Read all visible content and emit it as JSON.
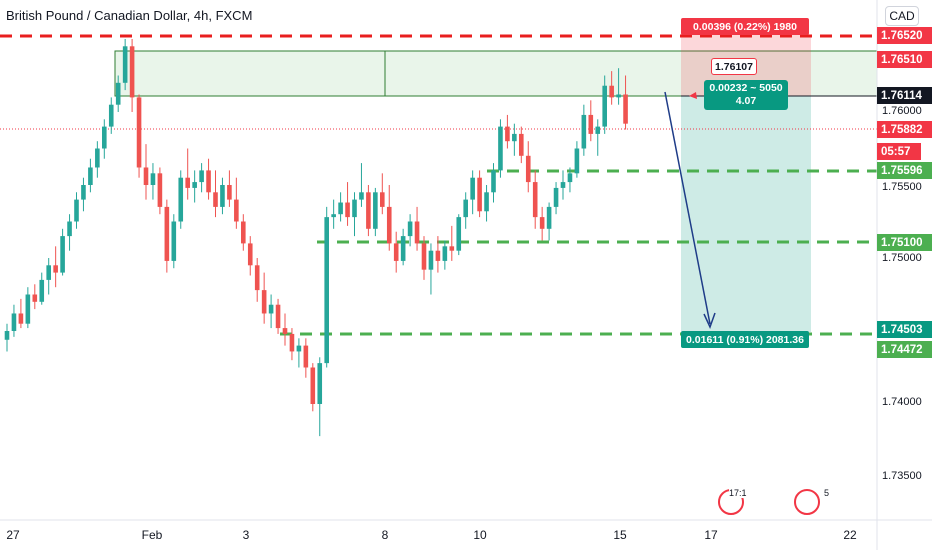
{
  "header": {
    "title": "British Pound / Canadian Dollar, 4h, FXCM",
    "currency_button": "CAD"
  },
  "price_tags": [
    {
      "label": "1.76520",
      "color": "#f23645"
    },
    {
      "label": "1.76510",
      "color": "#f23645"
    },
    {
      "label": "1.76114",
      "color": "#131722"
    },
    {
      "label": "1.75882",
      "color": "#f23645"
    },
    {
      "label": "05:57",
      "color": "#f23645"
    },
    {
      "label": "1.75596",
      "color": "#4caf50"
    },
    {
      "label": "1.75100",
      "color": "#4caf50"
    },
    {
      "label": "1.74503",
      "color": "#089981"
    },
    {
      "label": "1.74472",
      "color": "#4caf50"
    }
  ],
  "y_axis_ticks": [
    "1.76000",
    "1.75500",
    "1.75000",
    "1.74000",
    "1.73500"
  ],
  "x_axis_ticks": [
    "27",
    "Feb",
    "3",
    "8",
    "10",
    "15",
    "17",
    "22"
  ],
  "position_tool": {
    "stop_text": "0.00396 (0.22%) 1980",
    "entry_price_label": "1.76107",
    "info_line1": "0.00232 ~ 5050",
    "info_line2": "4.07",
    "target_text": "0.01611 (0.91%) 2081.36"
  },
  "event_badges": [
    {
      "label": "17:1"
    },
    {
      "label": "5"
    }
  ],
  "colors": {
    "bull": "#26a69a",
    "bear": "#ef5350",
    "level_red": "#e81e1e",
    "level_green": "#4caf50"
  },
  "chart_data": {
    "type": "candlestick",
    "title": "British Pound / Canadian Dollar, 4h, FXCM",
    "ylim": [
      1.7325,
      1.767
    ],
    "y_ticks": [
      1.76,
      1.755,
      1.75,
      1.74,
      1.735
    ],
    "x_tick_labels": [
      "27",
      "Feb",
      "3",
      "8",
      "10",
      "15",
      "17",
      "22"
    ],
    "horizontal_levels": [
      1.7652,
      1.7651,
      1.76114,
      1.75882,
      1.75596,
      1.751,
      1.74503,
      1.74472
    ],
    "candles": [
      [
        1.7444,
        1.7455,
        1.7436,
        1.745
      ],
      [
        1.745,
        1.7468,
        1.7446,
        1.7462
      ],
      [
        1.7462,
        1.7472,
        1.7452,
        1.7455
      ],
      [
        1.7455,
        1.748,
        1.7452,
        1.7475
      ],
      [
        1.7475,
        1.7482,
        1.7465,
        1.747
      ],
      [
        1.747,
        1.749,
        1.7468,
        1.7485
      ],
      [
        1.7485,
        1.75,
        1.7475,
        1.7495
      ],
      [
        1.7495,
        1.7508,
        1.748,
        1.749
      ],
      [
        1.749,
        1.752,
        1.7488,
        1.7515
      ],
      [
        1.7515,
        1.753,
        1.7505,
        1.7525
      ],
      [
        1.7525,
        1.7545,
        1.752,
        1.754
      ],
      [
        1.754,
        1.7555,
        1.7532,
        1.755
      ],
      [
        1.755,
        1.7568,
        1.7545,
        1.7562
      ],
      [
        1.7562,
        1.758,
        1.7555,
        1.7575
      ],
      [
        1.7575,
        1.7595,
        1.7568,
        1.759
      ],
      [
        1.759,
        1.761,
        1.7585,
        1.7605
      ],
      [
        1.7605,
        1.7625,
        1.76,
        1.762
      ],
      [
        1.762,
        1.765,
        1.7615,
        1.7645
      ],
      [
        1.7645,
        1.765,
        1.76,
        1.761
      ],
      [
        1.761,
        1.7612,
        1.7555,
        1.7562
      ],
      [
        1.7562,
        1.7578,
        1.754,
        1.755
      ],
      [
        1.755,
        1.7565,
        1.754,
        1.7558
      ],
      [
        1.7558,
        1.7562,
        1.753,
        1.7535
      ],
      [
        1.7535,
        1.754,
        1.749,
        1.7498
      ],
      [
        1.7498,
        1.753,
        1.7493,
        1.7525
      ],
      [
        1.7525,
        1.756,
        1.752,
        1.7555
      ],
      [
        1.7555,
        1.7575,
        1.754,
        1.7548
      ],
      [
        1.7548,
        1.756,
        1.7538,
        1.7552
      ],
      [
        1.7552,
        1.7565,
        1.7545,
        1.756
      ],
      [
        1.756,
        1.7568,
        1.754,
        1.7545
      ],
      [
        1.7545,
        1.756,
        1.7528,
        1.7535
      ],
      [
        1.7535,
        1.7555,
        1.753,
        1.755
      ],
      [
        1.755,
        1.756,
        1.7535,
        1.754
      ],
      [
        1.754,
        1.7555,
        1.752,
        1.7525
      ],
      [
        1.7525,
        1.753,
        1.7505,
        1.751
      ],
      [
        1.751,
        1.7515,
        1.7488,
        1.7495
      ],
      [
        1.7495,
        1.75,
        1.747,
        1.7478
      ],
      [
        1.7478,
        1.749,
        1.7455,
        1.7462
      ],
      [
        1.7462,
        1.7475,
        1.7452,
        1.7468
      ],
      [
        1.7468,
        1.7472,
        1.7448,
        1.7452
      ],
      [
        1.7452,
        1.7462,
        1.744,
        1.7448
      ],
      [
        1.7448,
        1.7452,
        1.743,
        1.7436
      ],
      [
        1.7436,
        1.7445,
        1.7425,
        1.744
      ],
      [
        1.744,
        1.7445,
        1.7418,
        1.7425
      ],
      [
        1.7425,
        1.7428,
        1.7395,
        1.74
      ],
      [
        1.74,
        1.7432,
        1.7378,
        1.7428
      ],
      [
        1.7428,
        1.7535,
        1.7425,
        1.7528
      ],
      [
        1.7528,
        1.754,
        1.752,
        1.753
      ],
      [
        1.753,
        1.7545,
        1.7525,
        1.7538
      ],
      [
        1.7538,
        1.7552,
        1.7522,
        1.7528
      ],
      [
        1.7528,
        1.7545,
        1.7515,
        1.754
      ],
      [
        1.754,
        1.7565,
        1.7535,
        1.7545
      ],
      [
        1.7545,
        1.755,
        1.7515,
        1.752
      ],
      [
        1.752,
        1.7548,
        1.7515,
        1.7545
      ],
      [
        1.7545,
        1.7558,
        1.753,
        1.7535
      ],
      [
        1.7535,
        1.755,
        1.7505,
        1.751
      ],
      [
        1.751,
        1.7518,
        1.749,
        1.7498
      ],
      [
        1.7498,
        1.752,
        1.7495,
        1.7515
      ],
      [
        1.7515,
        1.753,
        1.7508,
        1.7525
      ],
      [
        1.7525,
        1.7535,
        1.7505,
        1.751
      ],
      [
        1.751,
        1.7515,
        1.7485,
        1.7492
      ],
      [
        1.7492,
        1.751,
        1.7475,
        1.7505
      ],
      [
        1.7505,
        1.7515,
        1.749,
        1.7498
      ],
      [
        1.7498,
        1.7512,
        1.7492,
        1.7508
      ],
      [
        1.7508,
        1.7522,
        1.7498,
        1.7505
      ],
      [
        1.7505,
        1.753,
        1.7502,
        1.7528
      ],
      [
        1.7528,
        1.7545,
        1.752,
        1.754
      ],
      [
        1.754,
        1.756,
        1.753,
        1.7555
      ],
      [
        1.7555,
        1.756,
        1.7528,
        1.7532
      ],
      [
        1.7532,
        1.755,
        1.7525,
        1.7545
      ],
      [
        1.7545,
        1.7565,
        1.7538,
        1.756
      ],
      [
        1.756,
        1.7595,
        1.7555,
        1.759
      ],
      [
        1.759,
        1.7598,
        1.7575,
        1.758
      ],
      [
        1.758,
        1.7592,
        1.757,
        1.7585
      ],
      [
        1.7585,
        1.759,
        1.7565,
        1.757
      ],
      [
        1.757,
        1.758,
        1.7545,
        1.7552
      ],
      [
        1.7552,
        1.756,
        1.752,
        1.7528
      ],
      [
        1.7528,
        1.7535,
        1.7512,
        1.752
      ],
      [
        1.752,
        1.7538,
        1.7512,
        1.7535
      ],
      [
        1.7535,
        1.7552,
        1.753,
        1.7548
      ],
      [
        1.7548,
        1.756,
        1.754,
        1.7552
      ],
      [
        1.7552,
        1.7562,
        1.7545,
        1.7558
      ],
      [
        1.7558,
        1.758,
        1.7555,
        1.7575
      ],
      [
        1.7575,
        1.7605,
        1.757,
        1.7598
      ],
      [
        1.7598,
        1.7608,
        1.758,
        1.7585
      ],
      [
        1.7585,
        1.7595,
        1.757,
        1.759
      ],
      [
        1.759,
        1.7625,
        1.7585,
        1.7618
      ],
      [
        1.7618,
        1.7628,
        1.7605,
        1.761
      ],
      [
        1.761,
        1.763,
        1.7605,
        1.7612
      ],
      [
        1.7612,
        1.7625,
        1.7588,
        1.7592
      ]
    ]
  }
}
